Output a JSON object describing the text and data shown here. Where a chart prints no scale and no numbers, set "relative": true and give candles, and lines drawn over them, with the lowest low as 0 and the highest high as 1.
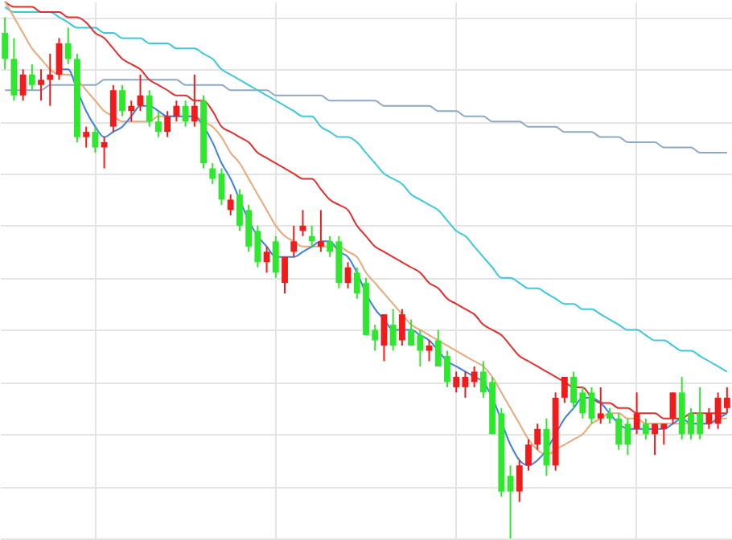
{
  "chart_data": {
    "type": "candlestick",
    "relative": true,
    "grid": true,
    "categories": [
      null,
      null,
      null,
      null,
      null,
      null,
      null,
      null,
      null,
      null,
      null,
      null,
      null,
      null,
      null,
      null,
      null,
      null,
      null,
      null,
      null,
      null,
      null,
      null,
      null,
      null,
      null,
      null,
      null,
      null,
      null,
      null,
      null,
      null,
      null,
      null,
      null,
      null,
      null,
      null,
      null,
      null,
      null,
      null,
      null,
      null,
      null,
      null,
      null,
      null,
      null,
      null,
      null,
      null,
      null,
      null,
      null,
      null,
      null,
      null,
      null,
      null,
      null,
      null,
      null,
      null,
      null,
      null,
      null,
      null,
      null,
      null,
      null,
      null,
      null,
      null,
      null,
      null,
      null,
      null,
      null
    ],
    "ohlc": [
      [
        0.97,
        1.0,
        0.9,
        0.92
      ],
      [
        0.92,
        0.96,
        0.84,
        0.85
      ],
      [
        0.85,
        0.9,
        0.84,
        0.89
      ],
      [
        0.89,
        0.91,
        0.86,
        0.87
      ],
      [
        0.87,
        0.9,
        0.84,
        0.88
      ],
      [
        0.88,
        0.93,
        0.83,
        0.89
      ],
      [
        0.89,
        0.96,
        0.88,
        0.95
      ],
      [
        0.95,
        0.98,
        0.91,
        0.92
      ],
      [
        0.92,
        0.93,
        0.76,
        0.77
      ],
      [
        0.77,
        0.79,
        0.75,
        0.78
      ],
      [
        0.78,
        0.79,
        0.74,
        0.75
      ],
      [
        0.75,
        0.77,
        0.71,
        0.76
      ],
      [
        0.79,
        0.87,
        0.78,
        0.86
      ],
      [
        0.86,
        0.87,
        0.81,
        0.82
      ],
      [
        0.82,
        0.84,
        0.8,
        0.83
      ],
      [
        0.83,
        0.89,
        0.82,
        0.85
      ],
      [
        0.85,
        0.86,
        0.79,
        0.8
      ],
      [
        0.8,
        0.82,
        0.77,
        0.78
      ],
      [
        0.78,
        0.82,
        0.77,
        0.81
      ],
      [
        0.81,
        0.84,
        0.8,
        0.83
      ],
      [
        0.83,
        0.84,
        0.79,
        0.8
      ],
      [
        0.8,
        0.89,
        0.79,
        0.83
      ],
      [
        0.84,
        0.85,
        0.71,
        0.72
      ],
      [
        0.71,
        0.72,
        0.68,
        0.69
      ],
      [
        0.7,
        0.71,
        0.64,
        0.65
      ],
      [
        0.63,
        0.66,
        0.62,
        0.65
      ],
      [
        0.66,
        0.67,
        0.59,
        0.6
      ],
      [
        0.63,
        0.64,
        0.55,
        0.56
      ],
      [
        0.59,
        0.6,
        0.52,
        0.53
      ],
      [
        0.53,
        0.56,
        0.51,
        0.55
      ],
      [
        0.57,
        0.58,
        0.5,
        0.51
      ],
      [
        0.49,
        0.54,
        0.47,
        0.54
      ],
      [
        0.55,
        0.6,
        0.54,
        0.57
      ],
      [
        0.59,
        0.63,
        0.58,
        0.6
      ],
      [
        0.58,
        0.6,
        0.56,
        0.57
      ],
      [
        0.56,
        0.63,
        0.55,
        0.57
      ],
      [
        0.57,
        0.58,
        0.54,
        0.55
      ],
      [
        0.57,
        0.58,
        0.48,
        0.49
      ],
      [
        0.49,
        0.53,
        0.48,
        0.52
      ],
      [
        0.51,
        0.52,
        0.46,
        0.47
      ],
      [
        0.49,
        0.5,
        0.39,
        0.39
      ],
      [
        0.4,
        0.41,
        0.36,
        0.38
      ],
      [
        0.37,
        0.43,
        0.34,
        0.43
      ],
      [
        0.41,
        0.44,
        0.36,
        0.37
      ],
      [
        0.38,
        0.44,
        0.37,
        0.43
      ],
      [
        0.4,
        0.42,
        0.37,
        0.37
      ],
      [
        0.39,
        0.4,
        0.33,
        0.36
      ],
      [
        0.36,
        0.38,
        0.34,
        0.37
      ],
      [
        0.38,
        0.4,
        0.33,
        0.33
      ],
      [
        0.35,
        0.36,
        0.29,
        0.3
      ],
      [
        0.29,
        0.32,
        0.28,
        0.31
      ],
      [
        0.29,
        0.32,
        0.27,
        0.31
      ],
      [
        0.3,
        0.33,
        0.29,
        0.32
      ],
      [
        0.32,
        0.34,
        0.27,
        0.28
      ],
      [
        0.3,
        0.31,
        0.2,
        0.2
      ],
      [
        0.24,
        0.25,
        0.08,
        0.09
      ],
      [
        0.12,
        0.14,
        0.0,
        0.09
      ],
      [
        0.09,
        0.15,
        0.07,
        0.14
      ],
      [
        0.14,
        0.19,
        0.13,
        0.18
      ],
      [
        0.18,
        0.22,
        0.17,
        0.21
      ],
      [
        0.21,
        0.23,
        0.12,
        0.14
      ],
      [
        0.14,
        0.28,
        0.13,
        0.27
      ],
      [
        0.27,
        0.31,
        0.26,
        0.31
      ],
      [
        0.31,
        0.32,
        0.25,
        0.26
      ],
      [
        0.28,
        0.29,
        0.23,
        0.24
      ],
      [
        0.28,
        0.29,
        0.22,
        0.23
      ],
      [
        0.23,
        0.29,
        0.22,
        0.24
      ],
      [
        0.24,
        0.25,
        0.22,
        0.23
      ],
      [
        0.23,
        0.24,
        0.17,
        0.18
      ],
      [
        0.22,
        0.23,
        0.16,
        0.18
      ],
      [
        0.21,
        0.28,
        0.2,
        0.24
      ],
      [
        0.22,
        0.23,
        0.19,
        0.2
      ],
      [
        0.2,
        0.22,
        0.16,
        0.22
      ],
      [
        0.21,
        0.22,
        0.18,
        0.22
      ],
      [
        0.23,
        0.28,
        0.22,
        0.28
      ],
      [
        0.28,
        0.31,
        0.19,
        0.2
      ],
      [
        0.24,
        0.25,
        0.19,
        0.2
      ],
      [
        0.24,
        0.29,
        0.19,
        0.2
      ],
      [
        0.22,
        0.25,
        0.21,
        0.24
      ],
      [
        0.22,
        0.28,
        0.21,
        0.27
      ],
      [
        0.25,
        0.29,
        0.24,
        0.27
      ]
    ],
    "colors": [
      "#2ee82e",
      "#2ee82e",
      "#f01c1c",
      "#2ee82e",
      "#f01c1c",
      "#f01c1c",
      "#f01c1c",
      "#2ee82e",
      "#2ee82e",
      "#f01c1c",
      "#2ee82e",
      "#f01c1c",
      "#f01c1c",
      "#2ee82e",
      "#f01c1c",
      "#f01c1c",
      "#2ee82e",
      "#2ee82e",
      "#f01c1c",
      "#f01c1c",
      "#2ee82e",
      "#f01c1c",
      "#2ee82e",
      "#2ee82e",
      "#2ee82e",
      "#f01c1c",
      "#2ee82e",
      "#2ee82e",
      "#2ee82e",
      "#f01c1c",
      "#2ee82e",
      "#f01c1c",
      "#f01c1c",
      "#f01c1c",
      "#2ee82e",
      "#f01c1c",
      "#2ee82e",
      "#2ee82e",
      "#f01c1c",
      "#2ee82e",
      "#2ee82e",
      "#2ee82e",
      "#f01c1c",
      "#2ee82e",
      "#f01c1c",
      "#2ee82e",
      "#2ee82e",
      "#f01c1c",
      "#2ee82e",
      "#2ee82e",
      "#f01c1c",
      "#f01c1c",
      "#f01c1c",
      "#2ee82e",
      "#2ee82e",
      "#2ee82e",
      "#2ee82e",
      "#f01c1c",
      "#f01c1c",
      "#f01c1c",
      "#2ee82e",
      "#f01c1c",
      "#f01c1c",
      "#2ee82e",
      "#2ee82e",
      "#2ee82e",
      "#f01c1c",
      "#2ee82e",
      "#2ee82e",
      "#2ee82e",
      "#f01c1c",
      "#2ee82e",
      "#f01c1c",
      "#f01c1c",
      "#f01c1c",
      "#2ee82e",
      "#2ee82e",
      "#2ee82e",
      "#f01c1c",
      "#f01c1c",
      "#f01c1c"
    ],
    "series": [
      {
        "type": "line",
        "color": "#8fa9c4",
        "values": [
          0.86,
          0.86,
          0.86,
          0.86,
          0.86,
          0.87,
          0.87,
          0.87,
          0.87,
          0.87,
          0.87,
          0.88,
          0.88,
          0.88,
          0.88,
          0.88,
          0.88,
          0.88,
          0.88,
          0.88,
          0.87,
          0.87,
          0.87,
          0.87,
          0.87,
          0.86,
          0.86,
          0.86,
          0.86,
          0.86,
          0.85,
          0.85,
          0.85,
          0.85,
          0.85,
          0.85,
          0.84,
          0.84,
          0.84,
          0.84,
          0.84,
          0.84,
          0.83,
          0.83,
          0.83,
          0.83,
          0.83,
          0.83,
          0.82,
          0.82,
          0.82,
          0.81,
          0.81,
          0.81,
          0.8,
          0.8,
          0.8,
          0.8,
          0.79,
          0.79,
          0.79,
          0.79,
          0.78,
          0.78,
          0.78,
          0.78,
          0.77,
          0.77,
          0.77,
          0.76,
          0.76,
          0.76,
          0.76,
          0.75,
          0.75,
          0.75,
          0.75,
          0.74,
          0.74,
          0.74,
          0.74
        ]
      },
      {
        "type": "line",
        "color": "#3cc8d8",
        "values": [
          1.02,
          1.01,
          1.01,
          1.01,
          1.01,
          1.01,
          1.0,
          0.99,
          0.98,
          0.98,
          0.98,
          0.97,
          0.97,
          0.96,
          0.96,
          0.96,
          0.95,
          0.95,
          0.95,
          0.94,
          0.94,
          0.94,
          0.93,
          0.92,
          0.9,
          0.89,
          0.88,
          0.87,
          0.86,
          0.85,
          0.84,
          0.83,
          0.82,
          0.81,
          0.81,
          0.79,
          0.78,
          0.77,
          0.77,
          0.76,
          0.74,
          0.72,
          0.7,
          0.69,
          0.68,
          0.66,
          0.65,
          0.64,
          0.63,
          0.61,
          0.59,
          0.58,
          0.56,
          0.54,
          0.52,
          0.5,
          0.5,
          0.49,
          0.48,
          0.48,
          0.47,
          0.46,
          0.45,
          0.45,
          0.44,
          0.44,
          0.43,
          0.42,
          0.41,
          0.4,
          0.4,
          0.39,
          0.38,
          0.38,
          0.37,
          0.36,
          0.36,
          0.35,
          0.34,
          0.33,
          0.32
        ]
      },
      {
        "type": "line",
        "color": "#e02f2f",
        "values": [
          1.03,
          1.02,
          1.02,
          1.02,
          1.01,
          1.01,
          1.01,
          1.0,
          1.0,
          0.99,
          0.97,
          0.96,
          0.94,
          0.92,
          0.91,
          0.9,
          0.88,
          0.87,
          0.86,
          0.85,
          0.85,
          0.84,
          0.84,
          0.82,
          0.79,
          0.78,
          0.77,
          0.76,
          0.74,
          0.73,
          0.72,
          0.71,
          0.7,
          0.69,
          0.69,
          0.67,
          0.65,
          0.64,
          0.63,
          0.6,
          0.58,
          0.56,
          0.55,
          0.54,
          0.53,
          0.52,
          0.51,
          0.49,
          0.48,
          0.46,
          0.45,
          0.44,
          0.43,
          0.41,
          0.4,
          0.39,
          0.37,
          0.35,
          0.34,
          0.33,
          0.32,
          0.31,
          0.3,
          0.29,
          0.29,
          0.27,
          0.26,
          0.26,
          0.25,
          0.25,
          0.24,
          0.24,
          0.24,
          0.23,
          0.23,
          0.23,
          0.24,
          0.24,
          0.24,
          0.24,
          0.24
        ]
      },
      {
        "type": "line",
        "color": "#e8a878",
        "values": [
          1.03,
          1.0,
          0.97,
          0.94,
          0.92,
          0.9,
          0.89,
          0.89,
          0.88,
          0.86,
          0.84,
          0.82,
          0.81,
          0.8,
          0.8,
          0.8,
          0.8,
          0.81,
          0.81,
          0.81,
          0.81,
          0.81,
          0.8,
          0.79,
          0.77,
          0.74,
          0.72,
          0.69,
          0.66,
          0.63,
          0.6,
          0.58,
          0.57,
          0.56,
          0.56,
          0.56,
          0.56,
          0.56,
          0.55,
          0.54,
          0.51,
          0.49,
          0.47,
          0.45,
          0.43,
          0.41,
          0.4,
          0.39,
          0.38,
          0.37,
          0.36,
          0.35,
          0.34,
          0.33,
          0.31,
          0.28,
          0.25,
          0.22,
          0.19,
          0.17,
          0.16,
          0.17,
          0.18,
          0.19,
          0.2,
          0.22,
          0.23,
          0.24,
          0.24,
          0.23,
          0.23,
          0.22,
          0.22,
          0.22,
          0.22,
          0.22,
          0.22,
          0.22,
          0.22,
          0.23,
          0.23
        ]
      },
      {
        "type": "line",
        "color": "#3f7fe0",
        "values": [
          null,
          null,
          null,
          null,
          null,
          null,
          0.9,
          0.9,
          0.86,
          0.82,
          0.79,
          0.77,
          0.78,
          0.79,
          0.81,
          0.83,
          0.83,
          0.82,
          0.81,
          0.81,
          0.81,
          0.81,
          0.79,
          0.76,
          0.72,
          0.69,
          0.65,
          0.61,
          0.58,
          0.56,
          0.54,
          0.54,
          0.54,
          0.55,
          0.56,
          0.57,
          0.57,
          0.55,
          0.54,
          0.51,
          0.47,
          0.44,
          0.42,
          0.4,
          0.4,
          0.4,
          0.39,
          0.38,
          0.36,
          0.34,
          0.33,
          0.32,
          0.31,
          0.3,
          0.27,
          null,
          0.18,
          0.15,
          0.14,
          0.15,
          0.17,
          0.2,
          0.23,
          0.25,
          0.27,
          0.27,
          0.26,
          0.24,
          0.22,
          0.21,
          0.21,
          0.21,
          0.21,
          0.21,
          0.22,
          0.23,
          0.22,
          0.22,
          0.22,
          0.23,
          0.24
        ]
      }
    ]
  }
}
